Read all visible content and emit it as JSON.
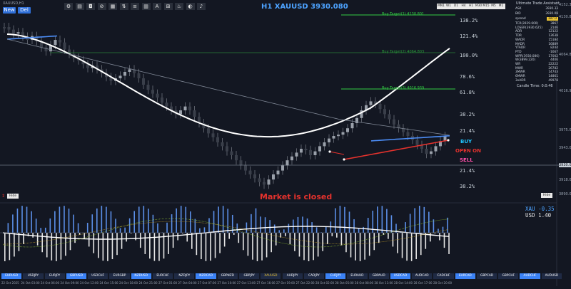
{
  "window": {
    "title": "XAUUSD,H1"
  },
  "buttons": {
    "new": "New",
    "del": "Del",
    "hide_main": "Hide",
    "hide_right": "Hide"
  },
  "toolbar_icons": [
    "gear-icon",
    "chart-icon",
    "camera-icon",
    "link-icon",
    "grid-icon",
    "arrows-icon",
    "list-icon",
    "bars-icon",
    "text-icon",
    "grid2-icon",
    "fire-icon",
    "circle-icon",
    "bell-icon"
  ],
  "header": {
    "symbol_price": "H1 XAUUSD 3930.080"
  },
  "timeframes": [
    "MN1",
    "W1",
    "D1",
    "H4",
    "H1",
    "M30",
    "M15",
    "M5",
    "M1"
  ],
  "targets": {
    "t1": "Buy Target(1) 4130.801",
    "t2": "Buy Target(2) 4064.803",
    "t3": "Buy Target(3) 4016.939"
  },
  "fib_levels": [
    "138.2%",
    "121.4%",
    "100.0%",
    "78.6%",
    "61.8%",
    "38.2%",
    "21.4%",
    "21.4%",
    "38.2%"
  ],
  "signals": {
    "buy": "BUY",
    "open": "OPEN ON",
    "sell": "SELL"
  },
  "status": {
    "market": "Market is closed"
  },
  "oscillator": {
    "xau_label": "XAU",
    "xau_value": "-0.35",
    "usd_label": "USD",
    "usd_value": "1.40"
  },
  "side_panel": {
    "title": "Ultimate Trade Assistant",
    "ask_label": "ASK",
    "ask_value": "3930.33",
    "bid_label": "BID",
    "bid_value": "3930.08",
    "spread_label": "spread",
    "spread_value": "187.0",
    "rows": [
      [
        "TCR(3929.600)",
        "3867"
      ],
      [
        "LOSER(3930.625)",
        "2146"
      ],
      [
        "ADR",
        "12122"
      ],
      [
        "TDR",
        "13638"
      ],
      [
        "WADR",
        "15184"
      ],
      [
        "MADR",
        "16889"
      ],
      [
        "YTADR",
        "8244"
      ],
      [
        "PTD",
        "-1667"
      ],
      [
        "WPR(3930.080)",
        "17002"
      ],
      [
        "W(3899.220)",
        "4406"
      ],
      [
        "WR",
        "22222"
      ],
      [
        "MWR",
        "26782"
      ],
      [
        "3MWR",
        "14743"
      ],
      [
        "6MWR",
        "14861"
      ],
      [
        "3xADR",
        "49978"
      ]
    ],
    "candle_time": "Candle Time: 0:0:46"
  },
  "right_axis": [
    "4152.31",
    "4130.80",
    "4064.80",
    "4016.94",
    "3975.00",
    "3943.00",
    "3930.08",
    "3918.00",
    "3890.00"
  ],
  "symbol_tabs": [
    "EURUSD",
    "USDJPY",
    "EURJPY",
    "GBPUSD",
    "USDCHF",
    "EURGBP",
    "NZDUSD",
    "EURCHF",
    "NZDJPY",
    "NZDCAD",
    "GBPNZD",
    "GBPJPY",
    "XAUUSD",
    "AUDJPY",
    "CADJPY",
    "CHFJPY",
    "EURAUD",
    "GBPAUD",
    "USDCAD",
    "AUDCAD",
    "CADCHF",
    "EURCAD",
    "GBPCAD",
    "GBPCHF",
    "AUDCHF",
    "AUDUSD"
  ],
  "time_labels": [
    "22 Oct 2025",
    "24 Oct 03:00",
    "24 Oct 06:00",
    "24 Oct 09:00",
    "24 Oct 12:00",
    "24 Oct 15:00",
    "24 Oct 18:00",
    "24 Oct 21:00",
    "27 Oct 01:00",
    "27 Oct 04:00",
    "27 Oct 07:00",
    "27 Oct 10:00",
    "27 Oct 13:00",
    "27 Oct 16:00",
    "27 Oct 19:00",
    "27 Oct 22:00",
    "28 Oct 02:00",
    "28 Oct 05:00",
    "28 Oct 08:00",
    "28 Oct 11:00",
    "28 Oct 14:00",
    "28 Oct 17:00",
    "28 Oct 20:00"
  ],
  "colors": {
    "bg": "#131722",
    "ma_fast": "#4c8df6",
    "ma_slow": "#ffffff",
    "trend": "#e5322d",
    "buy": "#1fc6ff",
    "sell": "#ff4fa8",
    "market_closed": "#e5322d",
    "target": "#33cc44"
  }
}
